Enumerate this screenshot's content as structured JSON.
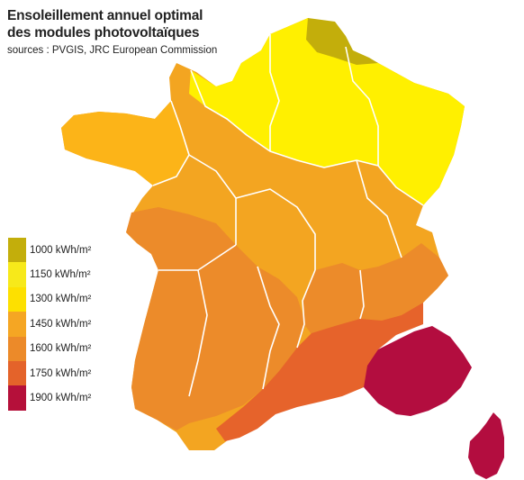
{
  "title_line1": "Ensoleillement annuel optimal",
  "title_line2": "des modules photovoltaïques",
  "subtitle": "sources : PVGIS, JRC European Commission",
  "legend": [
    {
      "label": "1000 kWh/m²",
      "color": "#c3ae0b"
    },
    {
      "label": "1150 kWh/m²",
      "color": "#f7e91a"
    },
    {
      "label": "1300 kWh/m²",
      "color": "#fde000"
    },
    {
      "label": "1450 kWh/m²",
      "color": "#f5a623"
    },
    {
      "label": "1600 kWh/m²",
      "color": "#ec8a29"
    },
    {
      "label": "1750 kWh/m²",
      "color": "#e4632a"
    },
    {
      "label": "1900 kWh/m²",
      "color": "#b5103a"
    }
  ],
  "colors": {
    "very_low": "#c3ae0b",
    "low": "#fff000",
    "mid_low": "#fcb418",
    "mid": "#f3a521",
    "mid_high": "#ec8b2a",
    "high": "#e6632b",
    "very_high": "#b30d3f",
    "borders": "#ffffff"
  }
}
